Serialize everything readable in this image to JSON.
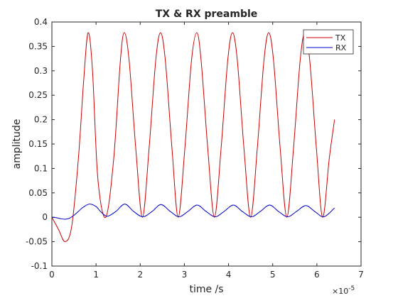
{
  "chart_data": {
    "type": "line",
    "title": "TX & RX preamble",
    "xlabel": "time /s",
    "ylabel": "amplitude",
    "xlim": [
      0,
      7e-05
    ],
    "ylim": [
      -0.1,
      0.4
    ],
    "x_ticks": [
      0,
      1,
      2,
      3,
      4,
      5,
      6,
      7
    ],
    "x_tick_labels": [
      "0",
      "1",
      "2",
      "3",
      "4",
      "5",
      "6",
      "7"
    ],
    "x_exponent_label": "×10",
    "x_exponent_power": "-5",
    "y_ticks": [
      -0.1,
      -0.05,
      0,
      0.05,
      0.1,
      0.15,
      0.2,
      0.25,
      0.3,
      0.35,
      0.4
    ],
    "y_tick_labels": [
      "-0.1",
      "-0.05",
      "0",
      "0.05",
      "0.1",
      "0.15",
      "0.2",
      "0.25",
      "0.3",
      "0.35",
      "0.4"
    ],
    "grid": false,
    "legend_position": "top-right",
    "series": [
      {
        "name": "TX",
        "color": "#cc0000",
        "x": [
          0,
          1.5e-06,
          3e-06,
          4.5e-06,
          6e-06,
          7.2e-06,
          8.2e-06,
          9.2e-06,
          1.04e-05,
          1.22e-05,
          1.4e-05,
          1.55e-05,
          1.64e-05,
          1.75e-05,
          1.9e-05,
          2.05e-05,
          2.2e-05,
          2.35e-05,
          2.46e-05,
          2.57e-05,
          2.72e-05,
          2.86e-05,
          3.01e-05,
          3.16e-05,
          3.28e-05,
          3.38e-05,
          3.53e-05,
          3.68e-05,
          3.83e-05,
          3.98e-05,
          4.09e-05,
          4.2e-05,
          4.35e-05,
          4.5e-05,
          4.65e-05,
          4.8e-05,
          4.91e-05,
          5.02e-05,
          5.17e-05,
          5.32e-05,
          5.47e-05,
          5.62e-05,
          5.73e-05,
          5.84e-05,
          5.99e-05,
          6.13e-05,
          6.28e-05,
          6.4e-05
        ],
        "y": [
          0,
          -0.025,
          -0.05,
          -0.018,
          0.12,
          0.28,
          0.378,
          0.3,
          0.08,
          0.0,
          0.12,
          0.32,
          0.378,
          0.32,
          0.14,
          0.0,
          0.14,
          0.32,
          0.378,
          0.32,
          0.14,
          0.0,
          0.14,
          0.32,
          0.378,
          0.32,
          0.14,
          0.0,
          0.14,
          0.32,
          0.378,
          0.32,
          0.14,
          0.0,
          0.14,
          0.32,
          0.378,
          0.32,
          0.14,
          0.0,
          0.14,
          0.32,
          0.378,
          0.32,
          0.14,
          0.0,
          0.12,
          0.2
        ]
      },
      {
        "name": "RX",
        "color": "#0000cc",
        "x": [
          0,
          1e-06,
          2e-06,
          3e-06,
          4e-06,
          5e-06,
          6e-06,
          7e-06,
          8.5e-06,
          1e-05,
          1.1e-05,
          1.25e-05,
          1.45e-05,
          1.65e-05,
          1.85e-05,
          2.06e-05,
          2.27e-05,
          2.47e-05,
          2.68e-05,
          2.88e-05,
          3.08e-05,
          3.29e-05,
          3.49e-05,
          3.7e-05,
          3.9e-05,
          4.11e-05,
          4.31e-05,
          4.52e-05,
          4.72e-05,
          4.93e-05,
          5.13e-05,
          5.34e-05,
          5.54e-05,
          5.75e-05,
          5.95e-05,
          6.16e-05,
          6.4e-05
        ],
        "y": [
          0,
          -0.001,
          -0.003,
          -0.004,
          -0.002,
          0.004,
          0.012,
          0.02,
          0.027,
          0.022,
          0.012,
          0.002,
          0.012,
          0.027,
          0.012,
          0.001,
          0.012,
          0.026,
          0.012,
          0.001,
          0.012,
          0.025,
          0.012,
          0.001,
          0.012,
          0.025,
          0.012,
          0.001,
          0.012,
          0.025,
          0.012,
          0.001,
          0.012,
          0.024,
          0.012,
          0.001,
          0.019
        ]
      }
    ]
  }
}
